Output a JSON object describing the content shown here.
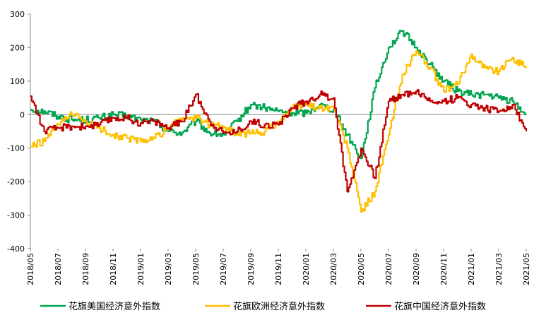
{
  "chart_data": {
    "type": "line",
    "x_tick_labels": [
      "2018/05",
      "2018/07",
      "2018/09",
      "2018/11",
      "2019/01",
      "2019/03",
      "2019/05",
      "2019/07",
      "2019/09",
      "2019/11",
      "2020/01",
      "2020/03",
      "2020/05",
      "2020/07",
      "2020/09",
      "2020/11",
      "2021/01",
      "2021/03",
      "2021/05"
    ],
    "y_tick_labels": [
      "300",
      "200",
      "100",
      "0",
      "-100",
      "-200",
      "-300",
      "-400"
    ],
    "ylim": [
      -400,
      300
    ],
    "xlim": [
      "2018/05",
      "2021/05"
    ],
    "grid": false,
    "legend_position": "bottom",
    "series": [
      {
        "name": "花旗美国经济意外指数",
        "color": "#00a550",
        "points": [
          [
            "2018/05",
            15
          ],
          [
            "2018/06",
            10
          ],
          [
            "2018/07",
            -5
          ],
          [
            "2018/08",
            -15
          ],
          [
            "2018/09",
            -15
          ],
          [
            "2018/10",
            -10
          ],
          [
            "2018/11",
            0
          ],
          [
            "2018/12",
            -5
          ],
          [
            "2019/01",
            -15
          ],
          [
            "2019/02",
            -20
          ],
          [
            "2019/03",
            -50
          ],
          [
            "2019/04",
            -55
          ],
          [
            "2019/05",
            -20
          ],
          [
            "2019/06",
            -55
          ],
          [
            "2019/07",
            -60
          ],
          [
            "2019/08",
            -20
          ],
          [
            "2019/09",
            30
          ],
          [
            "2019/10",
            20
          ],
          [
            "2019/11",
            10
          ],
          [
            "2019/12",
            5
          ],
          [
            "2020/01",
            5
          ],
          [
            "2020/02",
            30
          ],
          [
            "2020/03",
            15
          ],
          [
            "2020/04",
            -60
          ],
          [
            "2020/05",
            -130
          ],
          [
            "2020/06",
            80
          ],
          [
            "2020/07",
            200
          ],
          [
            "2020/08",
            250
          ],
          [
            "2020/09",
            200
          ],
          [
            "2020/10",
            150
          ],
          [
            "2020/11",
            100
          ],
          [
            "2020/12",
            70
          ],
          [
            "2021/01",
            60
          ],
          [
            "2021/02",
            60
          ],
          [
            "2021/03",
            50
          ],
          [
            "2021/04",
            40
          ],
          [
            "2021/05",
            0
          ]
        ]
      },
      {
        "name": "花旗欧洲经济意外指数",
        "color": "#ffc000",
        "points": [
          [
            "2018/05",
            -95
          ],
          [
            "2018/06",
            -80
          ],
          [
            "2018/07",
            -30
          ],
          [
            "2018/08",
            0
          ],
          [
            "2018/09",
            -20
          ],
          [
            "2018/10",
            -40
          ],
          [
            "2018/11",
            -60
          ],
          [
            "2018/12",
            -70
          ],
          [
            "2019/01",
            -80
          ],
          [
            "2019/02",
            -70
          ],
          [
            "2019/03",
            -40
          ],
          [
            "2019/04",
            -10
          ],
          [
            "2019/05",
            -10
          ],
          [
            "2019/06",
            -30
          ],
          [
            "2019/07",
            -35
          ],
          [
            "2019/08",
            -60
          ],
          [
            "2019/09",
            -55
          ],
          [
            "2019/10",
            -50
          ],
          [
            "2019/11",
            -20
          ],
          [
            "2019/12",
            20
          ],
          [
            "2020/01",
            30
          ],
          [
            "2020/02",
            20
          ],
          [
            "2020/03",
            20
          ],
          [
            "2020/04",
            -100
          ],
          [
            "2020/05",
            -290
          ],
          [
            "2020/06",
            -230
          ],
          [
            "2020/07",
            -60
          ],
          [
            "2020/08",
            120
          ],
          [
            "2020/09",
            190
          ],
          [
            "2020/10",
            140
          ],
          [
            "2020/11",
            70
          ],
          [
            "2020/12",
            90
          ],
          [
            "2021/01",
            180
          ],
          [
            "2021/02",
            140
          ],
          [
            "2021/03",
            130
          ],
          [
            "2021/04",
            170
          ],
          [
            "2021/05",
            140
          ]
        ]
      },
      {
        "name": "花旗中国经济意外指数",
        "color": "#c00000",
        "points": [
          [
            "2018/05",
            55
          ],
          [
            "2018/06",
            -50
          ],
          [
            "2018/07",
            -40
          ],
          [
            "2018/08",
            -35
          ],
          [
            "2018/09",
            -35
          ],
          [
            "2018/10",
            -30
          ],
          [
            "2018/11",
            -10
          ],
          [
            "2018/12",
            -10
          ],
          [
            "2019/01",
            -25
          ],
          [
            "2019/02",
            -20
          ],
          [
            "2019/03",
            -40
          ],
          [
            "2019/04",
            -20
          ],
          [
            "2019/05",
            60
          ],
          [
            "2019/06",
            -20
          ],
          [
            "2019/07",
            -55
          ],
          [
            "2019/08",
            -50
          ],
          [
            "2019/09",
            -20
          ],
          [
            "2019/10",
            -30
          ],
          [
            "2019/11",
            -30
          ],
          [
            "2019/12",
            20
          ],
          [
            "2020/01",
            40
          ],
          [
            "2020/02",
            60
          ],
          [
            "2020/03",
            50
          ],
          [
            "2020/04",
            -230
          ],
          [
            "2020/05",
            -100
          ],
          [
            "2020/06",
            -190
          ],
          [
            "2020/07",
            40
          ],
          [
            "2020/08",
            60
          ],
          [
            "2020/09",
            70
          ],
          [
            "2020/10",
            40
          ],
          [
            "2020/11",
            40
          ],
          [
            "2020/12",
            50
          ],
          [
            "2021/01",
            30
          ],
          [
            "2021/02",
            20
          ],
          [
            "2021/03",
            10
          ],
          [
            "2021/04",
            30
          ],
          [
            "2021/05",
            -50
          ]
        ]
      }
    ]
  }
}
